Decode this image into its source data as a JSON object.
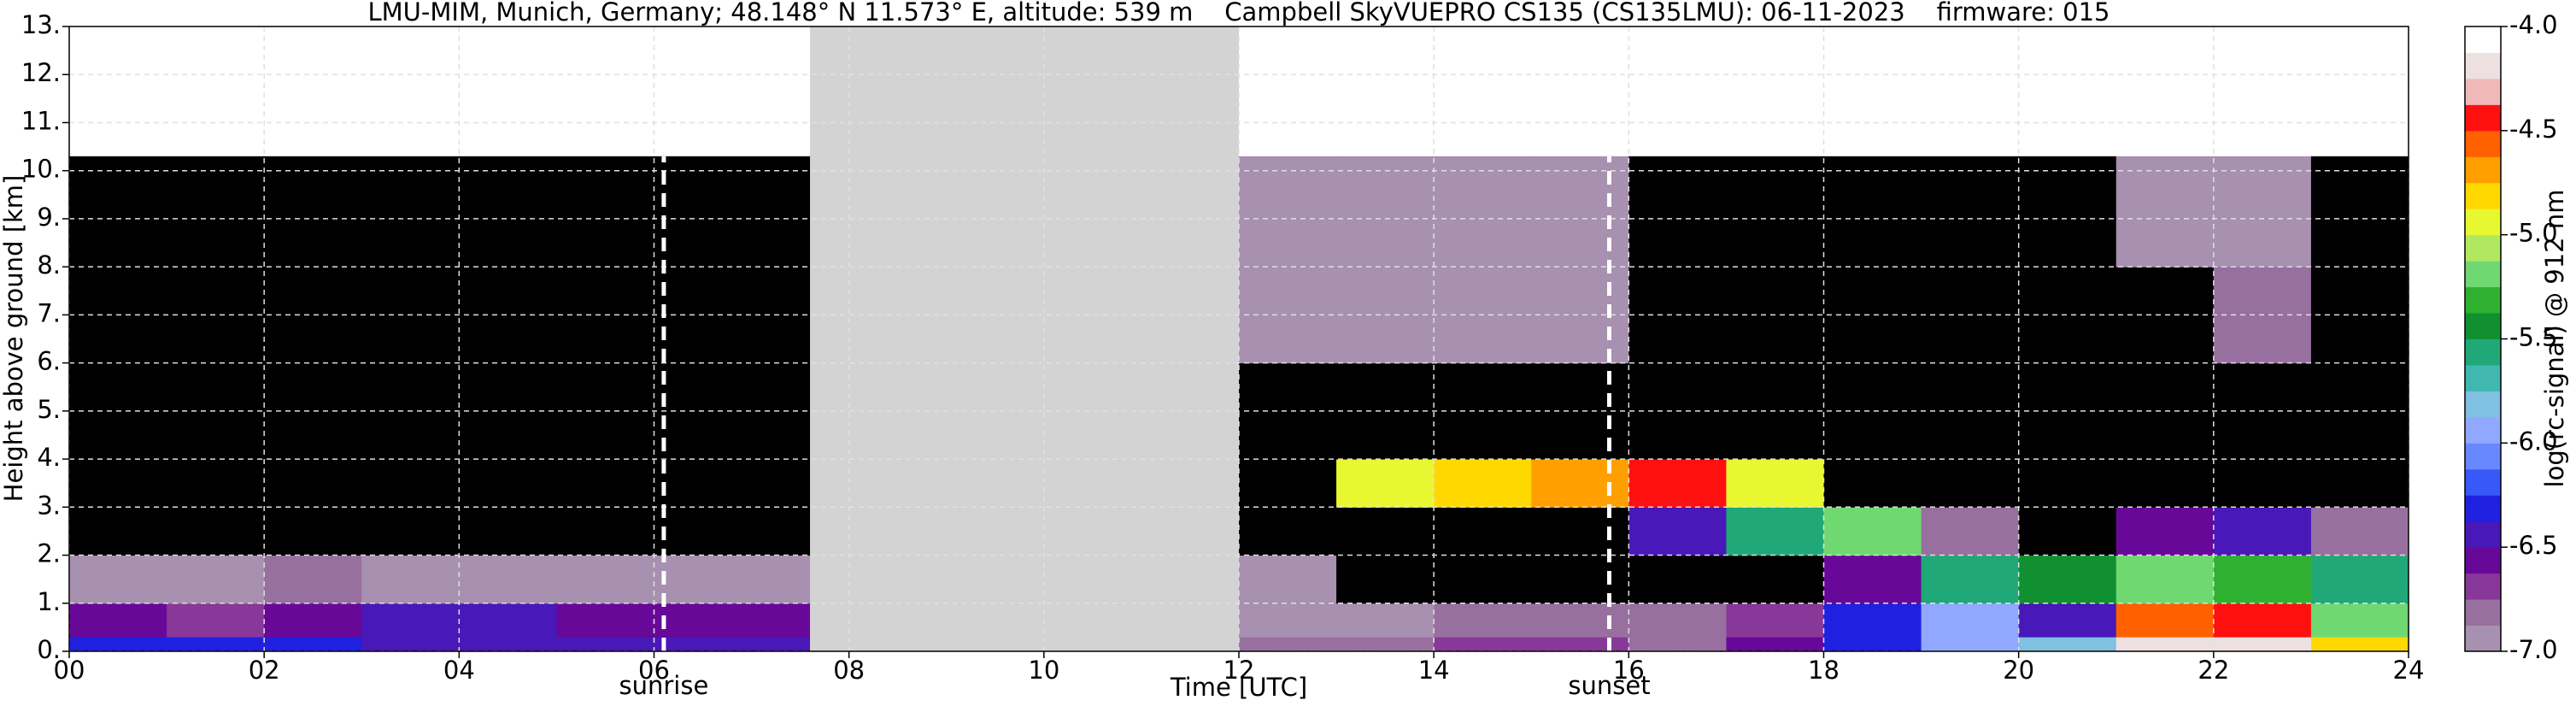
{
  "chart_data": {
    "type": "heatmap",
    "title": "LMU-MIM, Munich, Germany; 48.148° N 11.573° E, altitude: 539 m    Campbell SkyVUEPRO CS135 (CS135LMU): 06-11-2023    firmware: 015",
    "xlabel": "Time [UTC]",
    "ylabel": "Height above ground [km]",
    "colorbar_label": "log(rc-signal) @ 912 nm",
    "xlim": [
      0,
      24
    ],
    "ylim": [
      0,
      13
    ],
    "xticks": [
      {
        "value": 0,
        "label": "00"
      },
      {
        "value": 2,
        "label": "02"
      },
      {
        "value": 4,
        "label": "04"
      },
      {
        "value": 6,
        "label": "06"
      },
      {
        "value": 8,
        "label": "08"
      },
      {
        "value": 10,
        "label": "10"
      },
      {
        "value": 12,
        "label": "12"
      },
      {
        "value": 14,
        "label": "14"
      },
      {
        "value": 16,
        "label": "16"
      },
      {
        "value": 18,
        "label": "18"
      },
      {
        "value": 20,
        "label": "20"
      },
      {
        "value": 22,
        "label": "22"
      },
      {
        "value": 24,
        "label": "24"
      }
    ],
    "yticks": [
      {
        "value": 0,
        "label": "0."
      },
      {
        "value": 1,
        "label": "1."
      },
      {
        "value": 2,
        "label": "2."
      },
      {
        "value": 3,
        "label": "3."
      },
      {
        "value": 4,
        "label": "4."
      },
      {
        "value": 5,
        "label": "5."
      },
      {
        "value": 6,
        "label": "6."
      },
      {
        "value": 7,
        "label": "7."
      },
      {
        "value": 8,
        "label": "8."
      },
      {
        "value": 9,
        "label": "9."
      },
      {
        "value": 10,
        "label": "10."
      },
      {
        "value": 11,
        "label": "11."
      },
      {
        "value": 12,
        "label": "12."
      },
      {
        "value": 13,
        "label": "13."
      }
    ],
    "clim": [
      -7,
      -4
    ],
    "cticks": [
      {
        "value": -7,
        "label": "-7.0"
      },
      {
        "value": -6.5,
        "label": "-6.5"
      },
      {
        "value": -6,
        "label": "-6.0"
      },
      {
        "value": -5.5,
        "label": "-5.5"
      },
      {
        "value": -5,
        "label": "-5.0"
      },
      {
        "value": -4.5,
        "label": "-4.5"
      },
      {
        "value": -4,
        "label": "-4.0"
      }
    ],
    "colormap": [
      "#a890b0",
      "#9870a0",
      "#883898",
      "#680898",
      "#4818b8",
      "#2020e0",
      "#3858f8",
      "#6888ff",
      "#90a8ff",
      "#80c0e0",
      "#40b8b0",
      "#20a878",
      "#109030",
      "#30b030",
      "#70d870",
      "#b0e860",
      "#e8f830",
      "#ffd800",
      "#ffa000",
      "#ff6000",
      "#ff1010",
      "#f0b8b8",
      "#ece0e0",
      "#ffffff"
    ],
    "under_color": "#000000",
    "gap_color": "#d3d3d3",
    "grid": true,
    "gaps": [
      [
        7.6,
        12
      ]
    ],
    "xbins": [
      0,
      1,
      2,
      3,
      4,
      5,
      6,
      7,
      7.6,
      12,
      13,
      14,
      15,
      16,
      17,
      18,
      19,
      20,
      21,
      22,
      23,
      24
    ],
    "ybins": [
      0,
      0.3,
      1,
      2,
      3,
      4,
      6,
      8,
      10.3
    ],
    "z": [
      [
        -6.3,
        -6.3,
        -6.3,
        -6.4,
        -6.4,
        -6.4,
        -6.4,
        -6.4,
        null,
        -6.8,
        -6.8,
        -6.7,
        -6.7,
        -6.8,
        -6.6,
        -6.3,
        -6.0,
        -5.8,
        -4.2,
        -4.2,
        -4.8
      ],
      [
        -6.6,
        -6.7,
        -6.6,
        -6.5,
        -6.5,
        -6.6,
        -6.6,
        -6.6,
        null,
        -6.9,
        -6.9,
        -6.85,
        -6.85,
        -6.8,
        -6.7,
        -6.3,
        -5.9,
        -6.4,
        -4.6,
        -4.5,
        -5.2
      ],
      [
        -6.9,
        -6.9,
        -6.85,
        -6.9,
        -6.95,
        -6.95,
        -6.95,
        -6.95,
        null,
        -6.95,
        -7.5,
        -7.5,
        -7.5,
        -7.5,
        -7.5,
        -6.6,
        -5.6,
        -5.4,
        -5.2,
        -5.3,
        -5.6
      ],
      [
        -7.5,
        -7.5,
        -7.5,
        -7.5,
        -7.5,
        -7.5,
        -7.5,
        -7.5,
        null,
        -7.5,
        -7.5,
        -7.5,
        -7.5,
        -6.5,
        -5.6,
        -5.2,
        -6.8,
        -7.5,
        -6.6,
        -6.5,
        -6.8
      ],
      [
        -7.5,
        -7.5,
        -7.5,
        -7.5,
        -7.5,
        -7.5,
        -7.5,
        -7.5,
        null,
        -7.5,
        -4.9,
        -4.8,
        -4.7,
        -4.5,
        -5.0,
        -7.5,
        -7.5,
        -7.5,
        -7.5,
        -7.5,
        -7.5
      ],
      [
        -7.5,
        -7.5,
        -7.5,
        -7.5,
        -7.5,
        -7.5,
        -7.5,
        -7.5,
        null,
        -7.5,
        -7.5,
        -7.5,
        -7.5,
        -7.5,
        -7.5,
        -7.5,
        -7.5,
        -7.5,
        -7.5,
        -7.5,
        -7.5
      ],
      [
        -7.5,
        -7.5,
        -7.5,
        -7.5,
        -7.5,
        -7.5,
        -7.5,
        -7.5,
        null,
        -6.95,
        -6.95,
        -6.95,
        -6.95,
        -7.5,
        -7.5,
        -7.5,
        -7.5,
        -7.5,
        -7.5,
        -6.8,
        -7.5
      ],
      [
        -7.5,
        -7.5,
        -7.5,
        -7.5,
        -7.5,
        -7.5,
        -7.5,
        -7.5,
        null,
        -6.95,
        -6.95,
        -6.95,
        -6.95,
        -7.5,
        -7.5,
        -7.5,
        -7.5,
        -7.5,
        -6.9,
        -6.9,
        -7.5
      ]
    ],
    "annotations": [
      {
        "x": 6.1,
        "text": "sunrise"
      },
      {
        "x": 15.8,
        "text": "sunset"
      }
    ]
  }
}
